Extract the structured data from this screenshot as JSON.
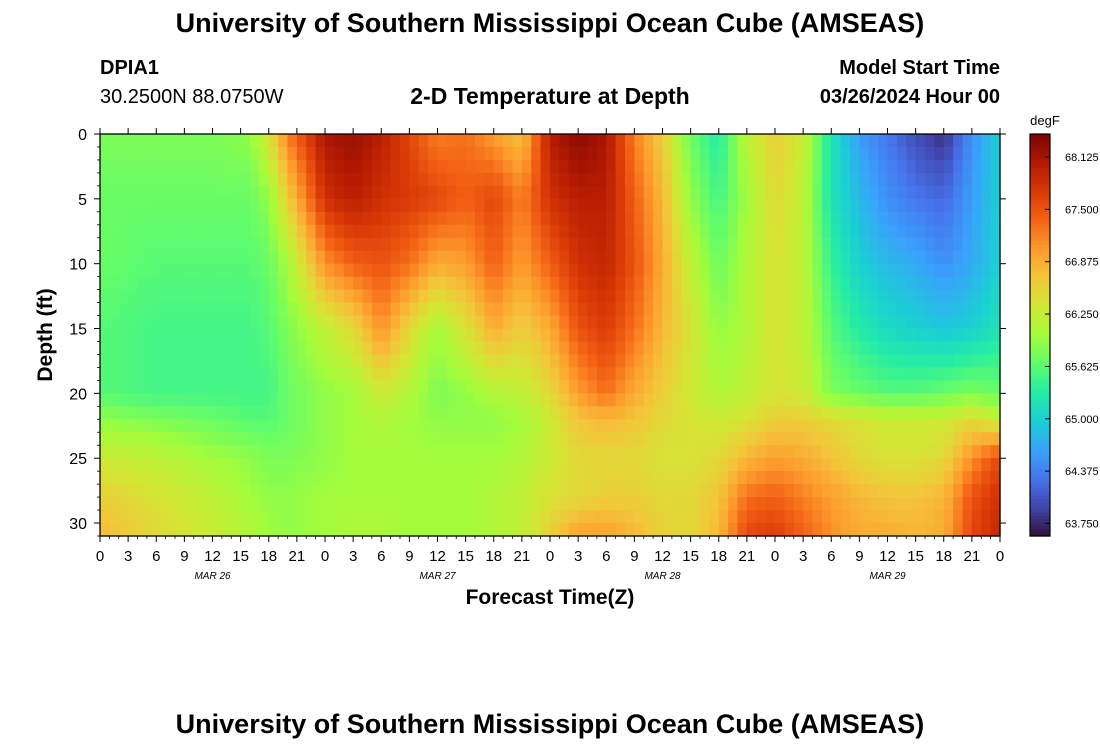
{
  "header": {
    "title": "University of Southern Mississippi Ocean Cube (AMSEAS)",
    "station_id": "DPIA1",
    "coordinates": "30.2500N  88.0750W",
    "plot_subtitle": "2-D Temperature at Depth",
    "model_start_label": "Model Start Time",
    "model_start_value": "03/26/2024 Hour 00"
  },
  "footer": {
    "repeated_title": "University of Southern Mississippi Ocean Cube (AMSEAS)"
  },
  "chart_data": {
    "type": "heatmap",
    "title": "2-D Temperature at Depth",
    "xlabel": "Forecast Time(Z)",
    "ylabel": "Depth (ft)",
    "x_range_hours": [
      0,
      96
    ],
    "x_ticks": [
      "0",
      "3",
      "6",
      "9",
      "12",
      "15",
      "18",
      "21",
      "0",
      "3",
      "6",
      "9",
      "12",
      "15",
      "18",
      "21",
      "0",
      "3",
      "6",
      "9",
      "12",
      "15",
      "18",
      "21",
      "0",
      "3",
      "6",
      "9",
      "12",
      "15",
      "18",
      "21",
      "0"
    ],
    "date_labels": [
      {
        "label": "MAR 26",
        "hour": 12
      },
      {
        "label": "MAR 27",
        "hour": 36
      },
      {
        "label": "MAR 28",
        "hour": 60
      },
      {
        "label": "MAR 29",
        "hour": 84
      }
    ],
    "y_range_ft": [
      0,
      31
    ],
    "y_ticks": [
      "0",
      "5",
      "10",
      "15",
      "20",
      "25",
      "30"
    ],
    "colorbar": {
      "unit": "degF",
      "min": 63.6,
      "max": 68.4,
      "tick_labels": [
        "68.125",
        "67.500",
        "66.875",
        "66.250",
        "65.625",
        "65.000",
        "64.375",
        "63.750"
      ],
      "colormap": [
        "#30123b",
        "#4145ab",
        "#4675ed",
        "#39a2fc",
        "#1bcfd4",
        "#24eca6",
        "#61fc6c",
        "#a4fc3b",
        "#d1e834",
        "#f3c63a",
        "#fe9b2d",
        "#f36315",
        "#d93806",
        "#b11901",
        "#7a0402"
      ]
    },
    "grid_depths_ft": [
      0,
      5,
      10,
      15,
      20,
      22,
      25,
      28,
      31
    ],
    "grid_hours": [
      0,
      6,
      12,
      16,
      18,
      20,
      24,
      27,
      30,
      33,
      36,
      39,
      42,
      45,
      48,
      51,
      54,
      57,
      60,
      63,
      66,
      69,
      72,
      75,
      78,
      81,
      84,
      87,
      90,
      93,
      96
    ],
    "temperature_degF": [
      [
        65.8,
        65.8,
        65.8,
        65.9,
        66.4,
        67.2,
        68.1,
        68.2,
        68.0,
        67.6,
        67.2,
        67.3,
        67.0,
        66.7,
        68.0,
        68.3,
        68.1,
        67.2,
        66.6,
        65.7,
        65.3,
        66.2,
        66.6,
        66.3,
        65.2,
        64.6,
        64.3,
        64.0,
        63.8,
        64.5,
        65.0
      ],
      [
        65.7,
        65.7,
        65.7,
        65.7,
        65.9,
        66.6,
        67.8,
        68.0,
        67.8,
        67.7,
        67.6,
        67.4,
        67.6,
        67.2,
        67.8,
        68.0,
        68.0,
        67.4,
        66.8,
        65.9,
        65.5,
        66.0,
        66.5,
        66.2,
        65.2,
        64.8,
        64.5,
        64.3,
        64.2,
        64.6,
        65.0
      ],
      [
        65.7,
        65.6,
        65.6,
        65.6,
        65.7,
        66.0,
        67.1,
        67.4,
        67.5,
        67.3,
        66.9,
        67.0,
        67.4,
        67.0,
        67.4,
        67.8,
        67.9,
        67.5,
        66.9,
        66.2,
        65.7,
        66.1,
        66.4,
        66.2,
        65.4,
        65.0,
        64.8,
        64.7,
        64.5,
        64.7,
        65.0
      ],
      [
        65.6,
        65.5,
        65.5,
        65.5,
        65.6,
        65.8,
        66.2,
        66.5,
        67.1,
        66.5,
        66.0,
        66.4,
        66.9,
        66.6,
        66.9,
        67.5,
        67.7,
        67.3,
        66.8,
        66.4,
        65.9,
        66.1,
        66.4,
        66.2,
        65.6,
        65.3,
        65.1,
        65.0,
        64.9,
        65.0,
        65.2
      ],
      [
        65.6,
        65.5,
        65.5,
        65.5,
        65.5,
        65.7,
        65.9,
        66.0,
        66.3,
        66.1,
        65.8,
        65.9,
        66.1,
        66.2,
        66.5,
        67.0,
        67.3,
        66.9,
        66.6,
        66.3,
        66.1,
        66.2,
        66.4,
        66.3,
        65.8,
        65.7,
        65.6,
        65.6,
        65.7,
        65.8,
        65.7
      ],
      [
        65.9,
        65.8,
        65.7,
        65.6,
        65.6,
        65.7,
        65.9,
        66.0,
        66.1,
        66.0,
        65.9,
        65.9,
        65.9,
        66.0,
        66.3,
        66.7,
        66.8,
        66.7,
        66.5,
        66.4,
        66.3,
        66.4,
        66.6,
        66.6,
        66.5,
        66.4,
        66.3,
        66.3,
        66.3,
        66.5,
        66.2
      ],
      [
        66.3,
        66.2,
        66.0,
        65.9,
        65.8,
        65.8,
        65.9,
        66.0,
        66.0,
        66.0,
        66.0,
        66.0,
        66.0,
        66.1,
        66.3,
        66.5,
        66.5,
        66.5,
        66.4,
        66.4,
        66.5,
        66.8,
        67.0,
        66.9,
        66.7,
        66.5,
        66.4,
        66.4,
        66.5,
        67.1,
        67.6
      ],
      [
        66.6,
        66.4,
        66.2,
        66.0,
        65.9,
        65.9,
        66.0,
        66.0,
        66.0,
        66.0,
        66.0,
        66.0,
        66.1,
        66.2,
        66.4,
        66.5,
        66.6,
        66.6,
        66.5,
        66.5,
        66.7,
        67.3,
        67.4,
        67.2,
        67.0,
        66.8,
        66.7,
        66.7,
        66.8,
        67.5,
        67.8
      ],
      [
        66.8,
        66.5,
        66.3,
        66.1,
        66.0,
        65.9,
        66.0,
        66.1,
        66.1,
        66.0,
        66.0,
        66.0,
        66.1,
        66.2,
        66.6,
        67.0,
        67.0,
        66.8,
        66.6,
        66.5,
        66.8,
        67.6,
        67.7,
        67.4,
        67.1,
        66.9,
        66.9,
        66.8,
        66.9,
        67.6,
        67.9
      ]
    ]
  }
}
